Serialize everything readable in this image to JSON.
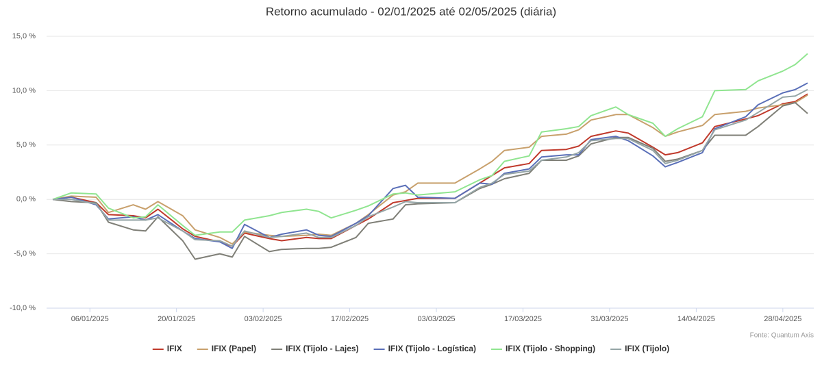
{
  "chart_data": {
    "type": "line",
    "title": "Retorno acumulado - 02/01/2025 até 02/05/2025 (diária)",
    "source": "Fonte: Quantum Axis",
    "x": [
      "31/12/2024",
      "03/01/2025",
      "07/01/2025",
      "09/01/2025",
      "13/01/2025",
      "15/01/2025",
      "17/01/2025",
      "21/01/2025",
      "23/01/2025",
      "27/01/2025",
      "29/01/2025",
      "31/01/2025",
      "04/02/2025",
      "06/02/2025",
      "10/02/2025",
      "12/02/2025",
      "14/02/2025",
      "18/02/2025",
      "20/02/2025",
      "24/02/2025",
      "26/02/2025",
      "28/02/2025",
      "06/03/2025",
      "10/03/2025",
      "12/03/2025",
      "14/03/2025",
      "18/03/2025",
      "20/03/2025",
      "24/03/2025",
      "26/03/2025",
      "28/03/2025",
      "01/04/2025",
      "03/04/2025",
      "07/04/2025",
      "09/04/2025",
      "11/04/2025",
      "15/04/2025",
      "17/04/2025",
      "22/04/2025",
      "24/04/2025",
      "28/04/2025",
      "30/04/2025",
      "02/05/2025"
    ],
    "series": [
      {
        "name": "IFIX",
        "color": "#c0392b",
        "values": [
          0,
          0.2,
          -0.3,
          -1.4,
          -1.5,
          -1.7,
          -0.9,
          -2.7,
          -3.4,
          -3.9,
          -4.3,
          -3.1,
          -3.6,
          -3.8,
          -3.5,
          -3.6,
          -3.6,
          -2.4,
          -1.8,
          -0.3,
          -0.1,
          0.1,
          0.1,
          1.5,
          2.2,
          2.9,
          3.3,
          4.5,
          4.6,
          4.9,
          5.8,
          6.3,
          6.1,
          4.8,
          4.1,
          4.3,
          5.2,
          6.7,
          7.4,
          7.7,
          8.8,
          9.0,
          9.7
        ]
      },
      {
        "name": "IFIX (Papel)",
        "color": "#c8a06c",
        "values": [
          0,
          0.3,
          0.2,
          -1.2,
          -0.5,
          -0.9,
          -0.2,
          -1.5,
          -2.8,
          -3.5,
          -4.1,
          -3.0,
          -3.3,
          -3.4,
          -3.3,
          -3.2,
          -3.3,
          -2.2,
          -1.4,
          0.4,
          0.7,
          1.5,
          1.5,
          2.8,
          3.5,
          4.5,
          4.8,
          5.8,
          6.0,
          6.4,
          7.3,
          7.8,
          7.8,
          6.6,
          5.8,
          6.2,
          6.8,
          7.8,
          8.1,
          8.4,
          8.7,
          8.9,
          9.6
        ]
      },
      {
        "name": "IFIX (Tijolo - Lajes)",
        "color": "#7f7f77",
        "values": [
          0,
          -0.2,
          -0.3,
          -2.1,
          -2.8,
          -2.9,
          -1.6,
          -3.8,
          -5.5,
          -5.0,
          -5.3,
          -3.4,
          -4.8,
          -4.6,
          -4.5,
          -4.5,
          -4.4,
          -3.5,
          -2.2,
          -1.8,
          -0.5,
          -0.4,
          -0.3,
          1.0,
          1.4,
          1.9,
          2.4,
          3.6,
          3.6,
          4.0,
          5.1,
          5.7,
          5.7,
          4.7,
          3.5,
          3.7,
          4.5,
          5.9,
          5.9,
          6.7,
          8.6,
          8.9,
          7.9
        ]
      },
      {
        "name": "IFIX (Tijolo - Logística)",
        "color": "#5a6fb8",
        "values": [
          0,
          0.2,
          -0.5,
          -1.8,
          -1.6,
          -1.9,
          -1.4,
          -2.9,
          -3.6,
          -3.9,
          -4.5,
          -2.3,
          -3.5,
          -3.2,
          -2.8,
          -3.3,
          -3.4,
          -2.2,
          -1.5,
          1.0,
          1.3,
          0.2,
          0.1,
          1.5,
          1.4,
          2.4,
          2.8,
          3.9,
          4.1,
          4.1,
          5.5,
          5.8,
          5.4,
          4.0,
          3.0,
          3.4,
          4.3,
          6.5,
          7.6,
          8.7,
          9.8,
          10.1,
          10.7
        ]
      },
      {
        "name": "IFIX (Tijolo - Shopping)",
        "color": "#90e590",
        "values": [
          0,
          0.6,
          0.5,
          -0.8,
          -1.7,
          -1.6,
          -0.5,
          -2.4,
          -3.3,
          -3.0,
          -3.0,
          -1.9,
          -1.5,
          -1.2,
          -0.9,
          -1.1,
          -1.7,
          -1.0,
          -0.6,
          0.5,
          0.6,
          0.4,
          0.7,
          1.8,
          2.2,
          3.5,
          4.0,
          6.2,
          6.5,
          6.7,
          7.7,
          8.5,
          7.8,
          7.0,
          5.8,
          6.5,
          7.6,
          10.0,
          10.1,
          10.9,
          11.8,
          12.4,
          13.4
        ]
      },
      {
        "name": "IFIX (Tijolo)",
        "color": "#95a5a6",
        "values": [
          0,
          0.0,
          -0.4,
          -1.9,
          -1.9,
          -1.9,
          -1.7,
          -2.9,
          -3.7,
          -3.8,
          -4.3,
          -2.9,
          -3.5,
          -3.4,
          -3.1,
          -3.5,
          -3.5,
          -2.4,
          -1.6,
          -0.7,
          -0.2,
          -0.3,
          -0.3,
          1.1,
          1.5,
          2.3,
          2.6,
          3.6,
          3.9,
          4.3,
          5.4,
          5.6,
          5.6,
          4.5,
          3.3,
          3.6,
          4.5,
          6.4,
          7.3,
          8.0,
          9.4,
          9.5,
          10.1
        ]
      }
    ],
    "xlim": [
      "30/12/2024",
      "03/05/2025"
    ],
    "xticks": [
      "06/01/2025",
      "20/01/2025",
      "03/02/2025",
      "17/02/2025",
      "03/03/2025",
      "17/03/2025",
      "31/03/2025",
      "14/04/2025",
      "28/04/2025"
    ],
    "ylim": [
      -10,
      15
    ],
    "yticks": [
      {
        "value": -10,
        "label": "-10,0 %"
      },
      {
        "value": -5,
        "label": "-5,0 %"
      },
      {
        "value": 0,
        "label": "0,0 %"
      },
      {
        "value": 5,
        "label": "5,0 %"
      },
      {
        "value": 10,
        "label": "10,0 %"
      },
      {
        "value": 15,
        "label": "15,0 %"
      }
    ],
    "grid": true
  }
}
